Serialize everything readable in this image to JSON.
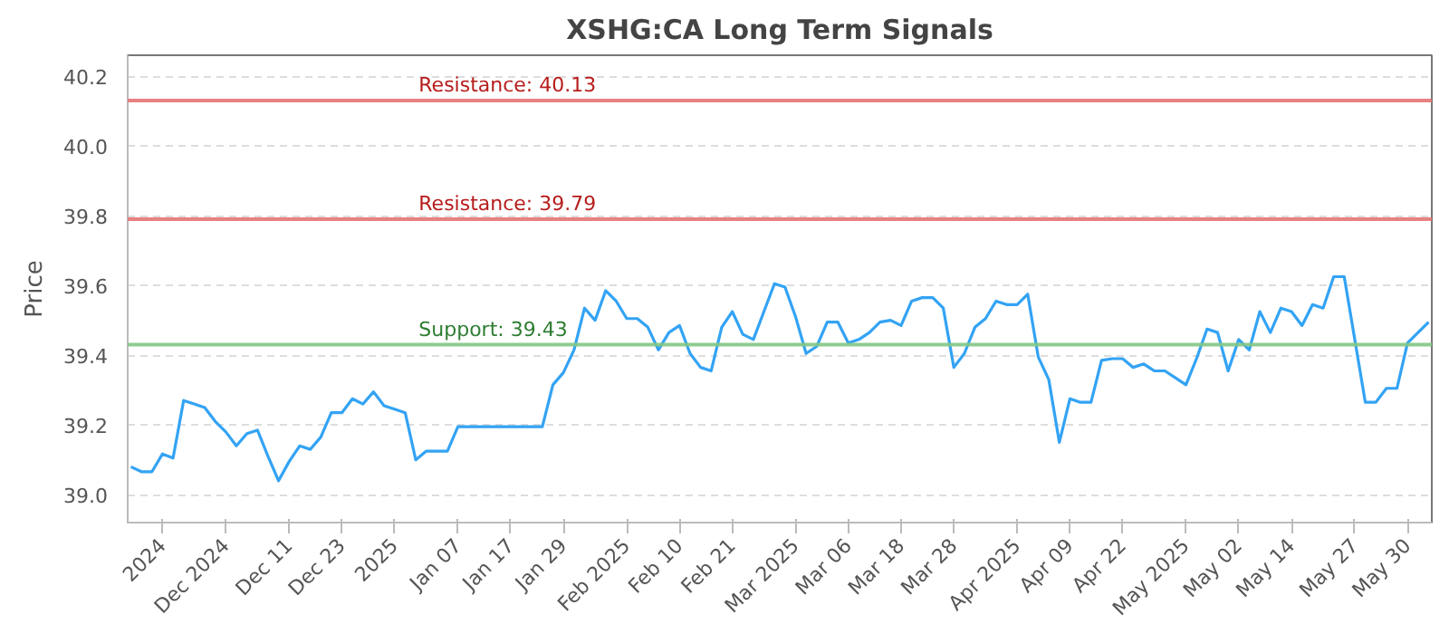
{
  "chart_data": {
    "type": "line",
    "title": "XSHG:CA Long Term Signals",
    "ylabel": "Price",
    "categories": [
      null,
      null,
      null,
      "2024",
      null,
      null,
      null,
      null,
      null,
      "Dec 2024",
      null,
      null,
      null,
      null,
      null,
      "Dec 11",
      null,
      null,
      null,
      null,
      "Dec 23",
      null,
      null,
      null,
      null,
      "2025",
      null,
      null,
      null,
      null,
      null,
      "Jan 07",
      null,
      null,
      null,
      null,
      "Jan 17",
      null,
      null,
      null,
      null,
      "Jan 29",
      null,
      null,
      null,
      null,
      null,
      "Feb 2025",
      null,
      null,
      null,
      null,
      "Feb 10",
      null,
      null,
      null,
      null,
      "Feb 21",
      null,
      null,
      null,
      null,
      null,
      "Mar 2025",
      null,
      null,
      null,
      null,
      "Mar 06",
      null,
      null,
      null,
      null,
      "Mar 18",
      null,
      null,
      null,
      null,
      "Mar 28",
      null,
      null,
      null,
      null,
      null,
      "Apr 2025",
      null,
      null,
      null,
      null,
      "Apr 09",
      null,
      null,
      null,
      null,
      "Apr 22",
      null,
      null,
      null,
      null,
      null,
      "May 2025",
      null,
      null,
      null,
      null,
      "May 02",
      null,
      null,
      null,
      null,
      "May 14",
      null,
      null,
      null,
      null,
      null,
      "May 27",
      null,
      null,
      null,
      null,
      "May 30",
      null,
      null
    ],
    "series": [
      {
        "color": "#33a3f4",
        "values": [
          39.08,
          39.066,
          39.066,
          39.117,
          39.105,
          39.27,
          39.26,
          39.25,
          39.21,
          39.18,
          39.14,
          39.175,
          39.185,
          39.11,
          39.04,
          39.095,
          39.14,
          39.13,
          39.165,
          39.235,
          39.235,
          39.275,
          39.26,
          39.295,
          39.255,
          39.245,
          39.235,
          39.1,
          39.125,
          39.125,
          39.125,
          39.195,
          39.195,
          39.195,
          39.195,
          39.195,
          39.195,
          39.195,
          39.195,
          39.195,
          39.315,
          39.35,
          39.415,
          39.535,
          39.5,
          39.585,
          39.555,
          39.505,
          39.505,
          39.48,
          39.415,
          39.465,
          39.485,
          39.405,
          39.365,
          39.355,
          39.48,
          39.525,
          39.46,
          39.445,
          39.525,
          39.605,
          39.595,
          39.51,
          39.405,
          39.425,
          39.495,
          39.495,
          39.435,
          39.445,
          39.465,
          39.495,
          39.5,
          39.485,
          39.555,
          39.565,
          39.565,
          39.535,
          39.365,
          39.405,
          39.48,
          39.505,
          39.555,
          39.545,
          39.545,
          39.575,
          39.395,
          39.33,
          39.15,
          39.275,
          39.265,
          39.265,
          39.385,
          39.39,
          39.39,
          39.365,
          39.375,
          39.355,
          39.355,
          39.335,
          39.315,
          39.39,
          39.475,
          39.465,
          39.355,
          39.445,
          39.415,
          39.525,
          39.465,
          39.535,
          39.525,
          39.485,
          39.545,
          39.535,
          39.625,
          39.625,
          39.445,
          39.265,
          39.265,
          39.305,
          39.305,
          39.435,
          39.465,
          39.495
        ]
      }
    ],
    "ylim": [
      38.92,
      40.26
    ],
    "yticks": [
      {
        "value": 39.0,
        "label": "39.0"
      },
      {
        "value": 39.2,
        "label": "39.2"
      },
      {
        "value": 39.4,
        "label": "39.4"
      },
      {
        "value": 39.6,
        "label": "39.6"
      },
      {
        "value": 39.8,
        "label": "39.8"
      },
      {
        "value": 40.0,
        "label": "40.0"
      },
      {
        "value": 40.2,
        "label": "40.2"
      }
    ],
    "ref_lines": [
      {
        "axis": "y",
        "value": 40.13,
        "label": "Resistance: 40.13",
        "color": "#e57373"
      },
      {
        "axis": "y",
        "value": 39.79,
        "label": "Resistance: 39.79",
        "color": "#e57373"
      },
      {
        "axis": "y",
        "value": 39.43,
        "label": "Support: 39.43",
        "color": "#81c784"
      }
    ],
    "grid": "y",
    "marker": "none",
    "line_style": "solid"
  }
}
